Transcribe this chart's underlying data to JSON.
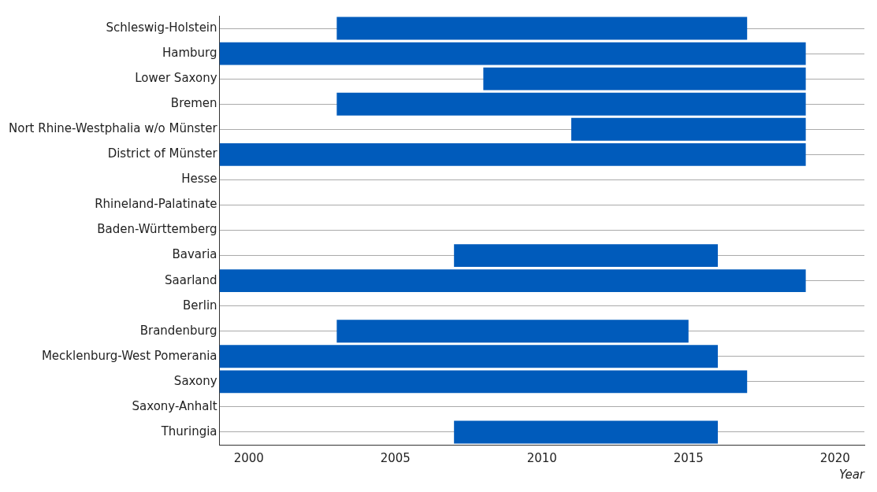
{
  "chart_data": {
    "type": "bar",
    "orientation": "horizontal",
    "xlabel": "Year",
    "categories": [
      "Schleswig-Holstein",
      "Hamburg",
      "Lower Saxony",
      "Bremen",
      "Nort Rhine-Westphalia w/o Münster",
      "District of Münster",
      "Hesse",
      "Rhineland-Palatinate",
      "Baden-Württemberg",
      "Bavaria",
      "Saarland",
      "Berlin",
      "Brandenburg",
      "Mecklenburg-West Pomerania",
      "Saxony",
      "Saxony-Anhalt",
      "Thuringia"
    ],
    "base": [
      2003,
      1999,
      2008,
      2003,
      2011,
      1999,
      null,
      null,
      null,
      2007,
      1999,
      null,
      2003,
      1999,
      1999,
      null,
      2007
    ],
    "values": [
      14,
      20,
      11,
      16,
      8,
      20,
      null,
      null,
      null,
      9,
      20,
      null,
      12,
      17,
      18,
      null,
      9
    ],
    "color": "#005bbb",
    "xlim": [
      1999,
      2021
    ],
    "xticks": [
      2000,
      2005,
      2010,
      2015,
      2020
    ],
    "grid": "y",
    "legend": false
  }
}
